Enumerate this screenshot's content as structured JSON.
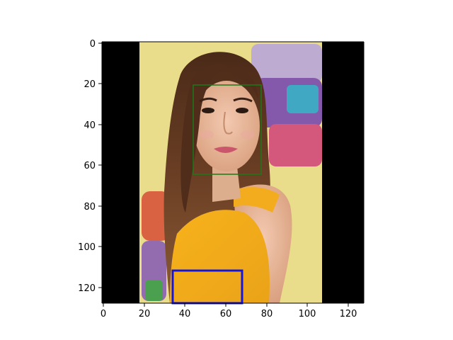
{
  "figure": {
    "x_range": [
      0,
      128
    ],
    "y_range": [
      0,
      128
    ],
    "y_axis_inverted": true,
    "x_ticks": [
      0,
      20,
      40,
      60,
      80,
      100,
      120
    ],
    "y_ticks": [
      0,
      20,
      40,
      60,
      80,
      100,
      120
    ],
    "x_tick_labels": [
      "0",
      "20",
      "40",
      "60",
      "80",
      "100",
      "120"
    ],
    "y_tick_labels": [
      "0",
      "20",
      "40",
      "60",
      "80",
      "100",
      "120"
    ]
  },
  "image": {
    "padding_color": "#000000",
    "photo_x_range": [
      18,
      108
    ],
    "background_color": "#e9dd8c",
    "subject": "young woman with long brown hair in an orange top"
  },
  "annotations": [
    {
      "name": "face-box",
      "x": [
        44,
        78
      ],
      "y": [
        21,
        65
      ],
      "color": "#1a7a1a",
      "line": "thin"
    },
    {
      "name": "torso-box",
      "x": [
        34,
        68
      ],
      "y": [
        112,
        128
      ],
      "color": "#1515e0",
      "line": "thick"
    }
  ]
}
